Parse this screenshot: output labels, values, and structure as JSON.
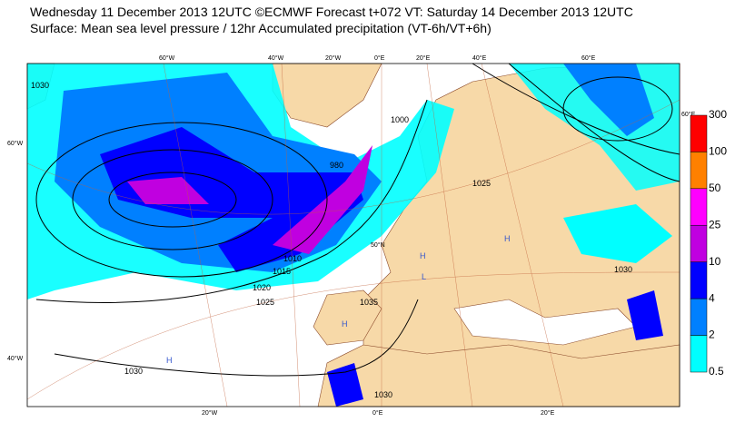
{
  "header": {
    "line1": "Wednesday 11 December 2013 12UTC ©ECMWF Forecast t+072 VT: Saturday 14 December 2013 12UTC",
    "line2": "Surface: Mean sea level pressure / 12hr Accumulated precipitation (VT-6h/VT+6h)"
  },
  "colorbar": {
    "levels": [
      300,
      100,
      50,
      25,
      10,
      4,
      2,
      0.5
    ],
    "colors": [
      "#ff0000",
      "#ff8000",
      "#ff00ff",
      "#c000e0",
      "#0000ff",
      "#0080ff",
      "#00ffff"
    ]
  },
  "map": {
    "lon_top": [
      "60°W",
      "40°W",
      "20°W",
      "0°E",
      "20°E",
      "40°E",
      "60°E"
    ],
    "lon_bottom": [
      "20°W",
      "0°E",
      "20°E"
    ],
    "lat_left": [
      "60°W",
      "40°W"
    ],
    "lat_right": "60°E",
    "lat_inner": "50°N",
    "isobars": [
      "1030",
      "1025",
      "1020",
      "1015",
      "1010",
      "1000",
      "980",
      "1030",
      "1035",
      "1030",
      "1025",
      "1030"
    ],
    "highs": [
      "H",
      "H",
      "H",
      "H"
    ],
    "lows": [
      "L"
    ]
  }
}
